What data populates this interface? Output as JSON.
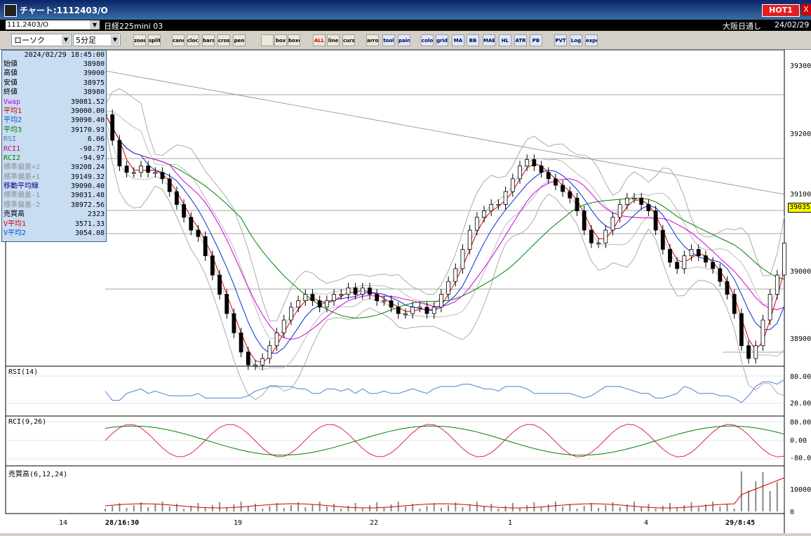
{
  "window": {
    "title": "チャート:1112403/O",
    "hot_label": "HOT1",
    "close_label": "X"
  },
  "infobar": {
    "symbol": "111.2403/O",
    "name": "日経225mini 03",
    "session": "大阪日通し",
    "date": "24/02/29"
  },
  "toolbar": {
    "chart_type": "ローソク",
    "interval": "5分足",
    "buttons": [
      "zoom",
      "split",
      "candle",
      "clock",
      "bars",
      "cross",
      "pen",
      "",
      "box",
      "boxes",
      "ALL",
      "line",
      "cursor",
      "arrow",
      "tool",
      "paint",
      "color",
      "grid",
      "MA",
      "BB",
      "MAE",
      "HL",
      "ATR",
      "PB",
      "PVT",
      "Log",
      "export"
    ]
  },
  "info_panel": {
    "datetime": "2024/02/29  18:45:00",
    "rows": [
      {
        "label": "始値",
        "value": "38980",
        "color": "#000000"
      },
      {
        "label": "高値",
        "value": "39000",
        "color": "#000000"
      },
      {
        "label": "安値",
        "value": "38975",
        "color": "#000000"
      },
      {
        "label": "終値",
        "value": "38980",
        "color": "#000000"
      },
      {
        "label": "Vwap",
        "value": "39081.52",
        "color": "#d000d0"
      },
      {
        "label": "平均1",
        "value": "39000.00",
        "color": "#d00000"
      },
      {
        "label": "平均2",
        "value": "39090.40",
        "color": "#0050d0"
      },
      {
        "label": "平均3",
        "value": "39170.93",
        "color": "#008000"
      },
      {
        "label": "RSI",
        "value": "6.06",
        "color": "#5080c0"
      },
      {
        "label": "RCI1",
        "value": "-98.75",
        "color": "#d00070"
      },
      {
        "label": "RCI2",
        "value": "-94.97",
        "color": "#008000"
      },
      {
        "label": "標準偏差+2",
        "value": "39208.24",
        "color": "#909090"
      },
      {
        "label": "標準偏差+1",
        "value": "39149.32",
        "color": "#909090"
      },
      {
        "label": "移動平均線",
        "value": "39090.40",
        "color": "#000080"
      },
      {
        "label": "標準偏差-1",
        "value": "39031.48",
        "color": "#909090"
      },
      {
        "label": "標準偏差-2",
        "value": "38972.56",
        "color": "#909090"
      },
      {
        "label": "売買高",
        "value": "2323",
        "color": "#000000"
      },
      {
        "label": "V平均1",
        "value": "3571.33",
        "color": "#d00000"
      },
      {
        "label": "V平均2",
        "value": "3054.08",
        "color": "#0050d0"
      }
    ]
  },
  "chart_data": {
    "type": "candlestick",
    "price_axis": {
      "ticks": [
        "39300",
        "39200",
        "39100",
        "39000",
        "38900"
      ],
      "last_price": "39035",
      "range": [
        38860,
        39330
      ]
    },
    "x_labels": [
      {
        "text": "14",
        "bold": false
      },
      {
        "text": "28/16:30",
        "bold": true
      },
      {
        "text": "19",
        "bold": false
      },
      {
        "text": "22",
        "bold": false
      },
      {
        "text": "1",
        "bold": false
      },
      {
        "text": "4",
        "bold": false
      },
      {
        "text": "29/8:45",
        "bold": true
      }
    ],
    "close_series": [
      39240,
      39200,
      39160,
      39150,
      39150,
      39160,
      39150,
      39150,
      39140,
      39120,
      39100,
      39080,
      39060,
      39050,
      39020,
      38990,
      38960,
      38930,
      38900,
      38870,
      38850,
      38850,
      38860,
      38880,
      38900,
      38920,
      38940,
      38950,
      38960,
      38950,
      38940,
      38950,
      38960,
      38960,
      38970,
      38960,
      38970,
      38960,
      38950,
      38950,
      38940,
      38930,
      38930,
      38940,
      38940,
      38930,
      38940,
      38960,
      38980,
      39000,
      39030,
      39060,
      39080,
      39090,
      39100,
      39100,
      39120,
      39140,
      39160,
      39170,
      39160,
      39150,
      39140,
      39130,
      39120,
      39110,
      39090,
      39060,
      39040,
      39040,
      39060,
      39080,
      39100,
      39110,
      39110,
      39100,
      39090,
      39060,
      39030,
      39010,
      39000,
      39020,
      39030,
      39020,
      39010,
      39000,
      38980,
      38960,
      38930,
      38880,
      38860,
      38880,
      38920,
      38960,
      38990,
      39040
    ],
    "panels": [
      {
        "label": "RSI(14)",
        "ticks": [
          "80.00",
          "20.00"
        ]
      },
      {
        "label": "RCI(9,26)",
        "ticks": [
          "80.00",
          "0.00",
          "-80.00"
        ]
      },
      {
        "label": "売買高(6,12,24)",
        "ticks": [
          "10000",
          "0"
        ]
      }
    ]
  }
}
